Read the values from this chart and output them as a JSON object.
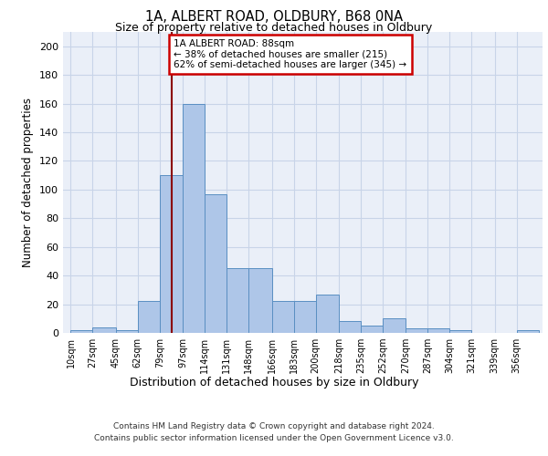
{
  "title1": "1A, ALBERT ROAD, OLDBURY, B68 0NA",
  "title2": "Size of property relative to detached houses in Oldbury",
  "xlabel": "Distribution of detached houses by size in Oldbury",
  "ylabel": "Number of detached properties",
  "bin_labels": [
    "10sqm",
    "27sqm",
    "45sqm",
    "62sqm",
    "79sqm",
    "97sqm",
    "114sqm",
    "131sqm",
    "148sqm",
    "166sqm",
    "183sqm",
    "200sqm",
    "218sqm",
    "235sqm",
    "252sqm",
    "270sqm",
    "287sqm",
    "304sqm",
    "321sqm",
    "339sqm",
    "356sqm"
  ],
  "bin_edges": [
    10,
    27,
    45,
    62,
    79,
    97,
    114,
    131,
    148,
    166,
    183,
    200,
    218,
    235,
    252,
    270,
    287,
    304,
    321,
    339,
    356
  ],
  "bar_heights": [
    2,
    4,
    2,
    22,
    110,
    160,
    97,
    45,
    45,
    22,
    22,
    27,
    8,
    5,
    10,
    3,
    3,
    2,
    0,
    0,
    2
  ],
  "bar_color": "#aec6e8",
  "bar_edge_color": "#5a8fc2",
  "property_line_x": 88,
  "property_line_color": "#8b0000",
  "annotation_box_text": "1A ALBERT ROAD: 88sqm\n← 38% of detached houses are smaller (215)\n62% of semi-detached houses are larger (345) →",
  "annotation_box_edge_color": "#cc0000",
  "annotation_box_bg_color": "#ffffff",
  "ylim": [
    0,
    210
  ],
  "yticks": [
    0,
    20,
    40,
    60,
    80,
    100,
    120,
    140,
    160,
    180,
    200
  ],
  "grid_color": "#c8d4e8",
  "background_color": "#eaeff8",
  "footer_line1": "Contains HM Land Registry data © Crown copyright and database right 2024.",
  "footer_line2": "Contains public sector information licensed under the Open Government Licence v3.0."
}
